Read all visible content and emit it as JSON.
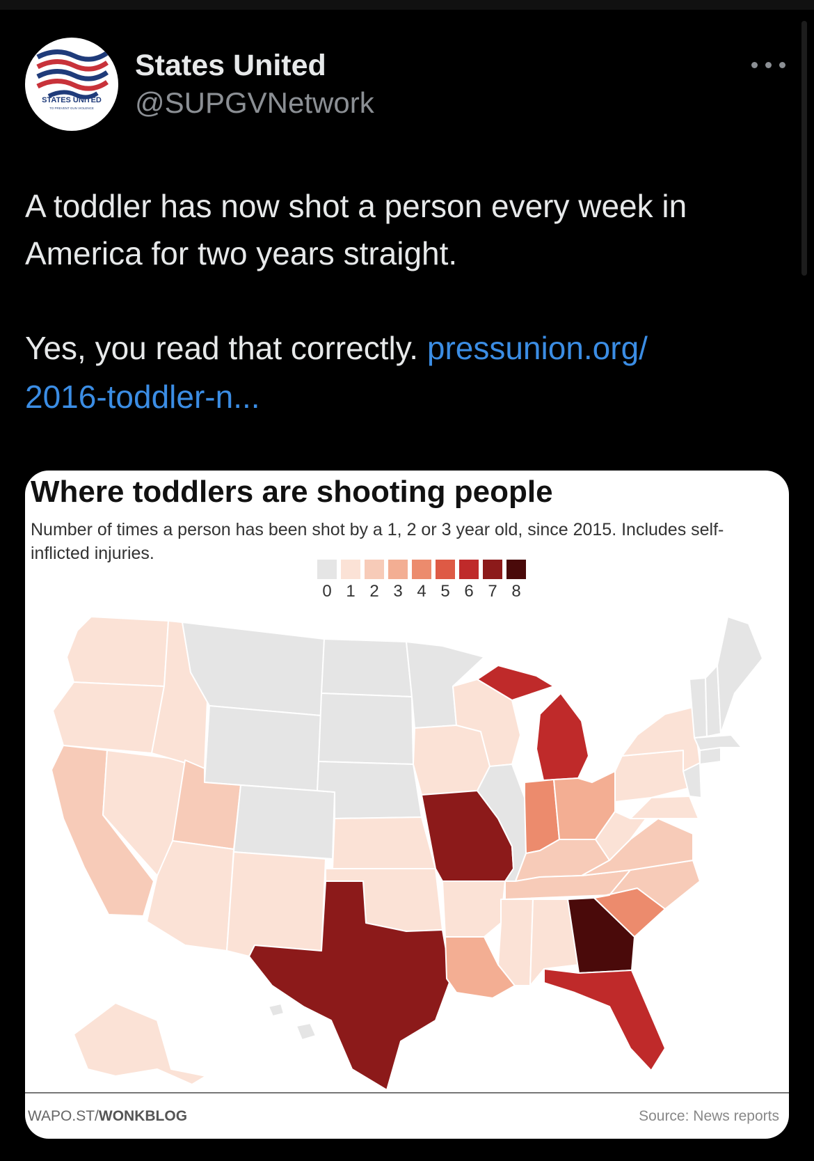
{
  "tweet": {
    "author_name": "States United",
    "author_handle": "@SUPGVNetwork",
    "avatar_text": "STATES UNITED",
    "avatar_subtext": "TO PREVENT GUN VIOLENCE",
    "text_line1": "A toddler has now shot a person every week in",
    "text_line2": "America for two years straight.",
    "text_line3": "Yes, you read that correctly.",
    "link_line1": "pressunion.org/",
    "link_line2": "2016-toddler-n...",
    "link_color": "#3b8de4"
  },
  "chart": {
    "title": "Where toddlers are shooting people",
    "subtitle": "Number of times a person has been shot by a 1, 2 or 3 year old, since 2015. Includes self-inflicted injuries.",
    "footer_left_prefix": "WAPO.ST/",
    "footer_left_bold": "WONKBLOG",
    "footer_right": "Source: News reports"
  },
  "chart_data": {
    "type": "choropleth",
    "legend_labels": [
      "0",
      "1",
      "2",
      "3",
      "4",
      "5",
      "6",
      "7",
      "8"
    ],
    "legend_colors": [
      "#e5e5e5",
      "#fbe2d6",
      "#f7cbb8",
      "#f3ae93",
      "#ec8b6d",
      "#de5a45",
      "#bf2a2a",
      "#8c1a1a",
      "#4a0a0a"
    ],
    "values": {
      "WA": 1,
      "OR": 1,
      "CA": 2,
      "NV": 1,
      "ID": 1,
      "MT": 0,
      "WY": 0,
      "UT": 2,
      "AZ": 1,
      "CO": 0,
      "NM": 1,
      "ND": 0,
      "SD": 0,
      "NE": 0,
      "KS": 1,
      "OK": 1,
      "TX": 7,
      "MN": 0,
      "IA": 1,
      "MO": 7,
      "AR": 1,
      "LA": 3,
      "WI": 1,
      "IL": 0,
      "MI": 6,
      "IN": 4,
      "OH": 3,
      "KY": 2,
      "TN": 2,
      "MS": 1,
      "AL": 1,
      "GA": 8,
      "FL": 6,
      "SC": 4,
      "NC": 2,
      "VA": 2,
      "WV": 1,
      "PA": 1,
      "NY": 1,
      "MD": 1,
      "ME": 0,
      "NH": 0,
      "VT": 0,
      "MA": 0,
      "CT": 0,
      "NJ": 0,
      "AK": 1,
      "HI": 0
    }
  }
}
